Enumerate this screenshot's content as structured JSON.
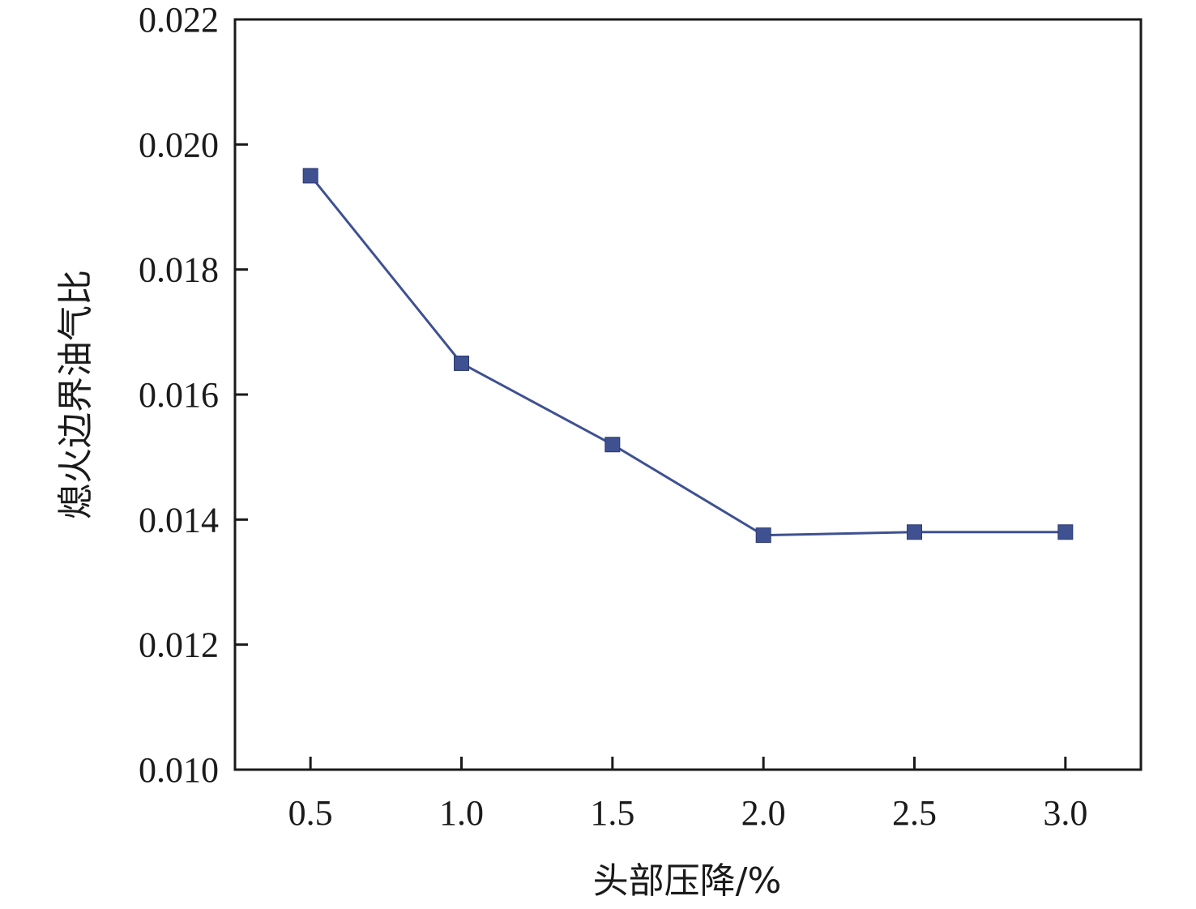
{
  "chart_data": {
    "type": "line",
    "title": "",
    "xlabel": "头部压降/%",
    "ylabel": "熄火边界油气比",
    "x": [
      0.5,
      1.0,
      1.5,
      2.0,
      2.5,
      3.0
    ],
    "x_tick_labels": [
      "0.5",
      "1.0",
      "1.5",
      "2.0",
      "2.5",
      "3.0"
    ],
    "y_tick_labels": [
      "0.010",
      "0.012",
      "0.014",
      "0.016",
      "0.018",
      "0.020",
      "0.022"
    ],
    "y_ticks": [
      0.01,
      0.012,
      0.014,
      0.016,
      0.018,
      0.02,
      0.022
    ],
    "xlim": [
      0.25,
      3.25
    ],
    "ylim": [
      0.01,
      0.022
    ],
    "grid": false,
    "series": [
      {
        "values": [
          0.0195,
          0.0165,
          0.0152,
          0.01375,
          0.0138,
          0.0138
        ],
        "color": "#3f5191",
        "marker": "square"
      }
    ]
  }
}
